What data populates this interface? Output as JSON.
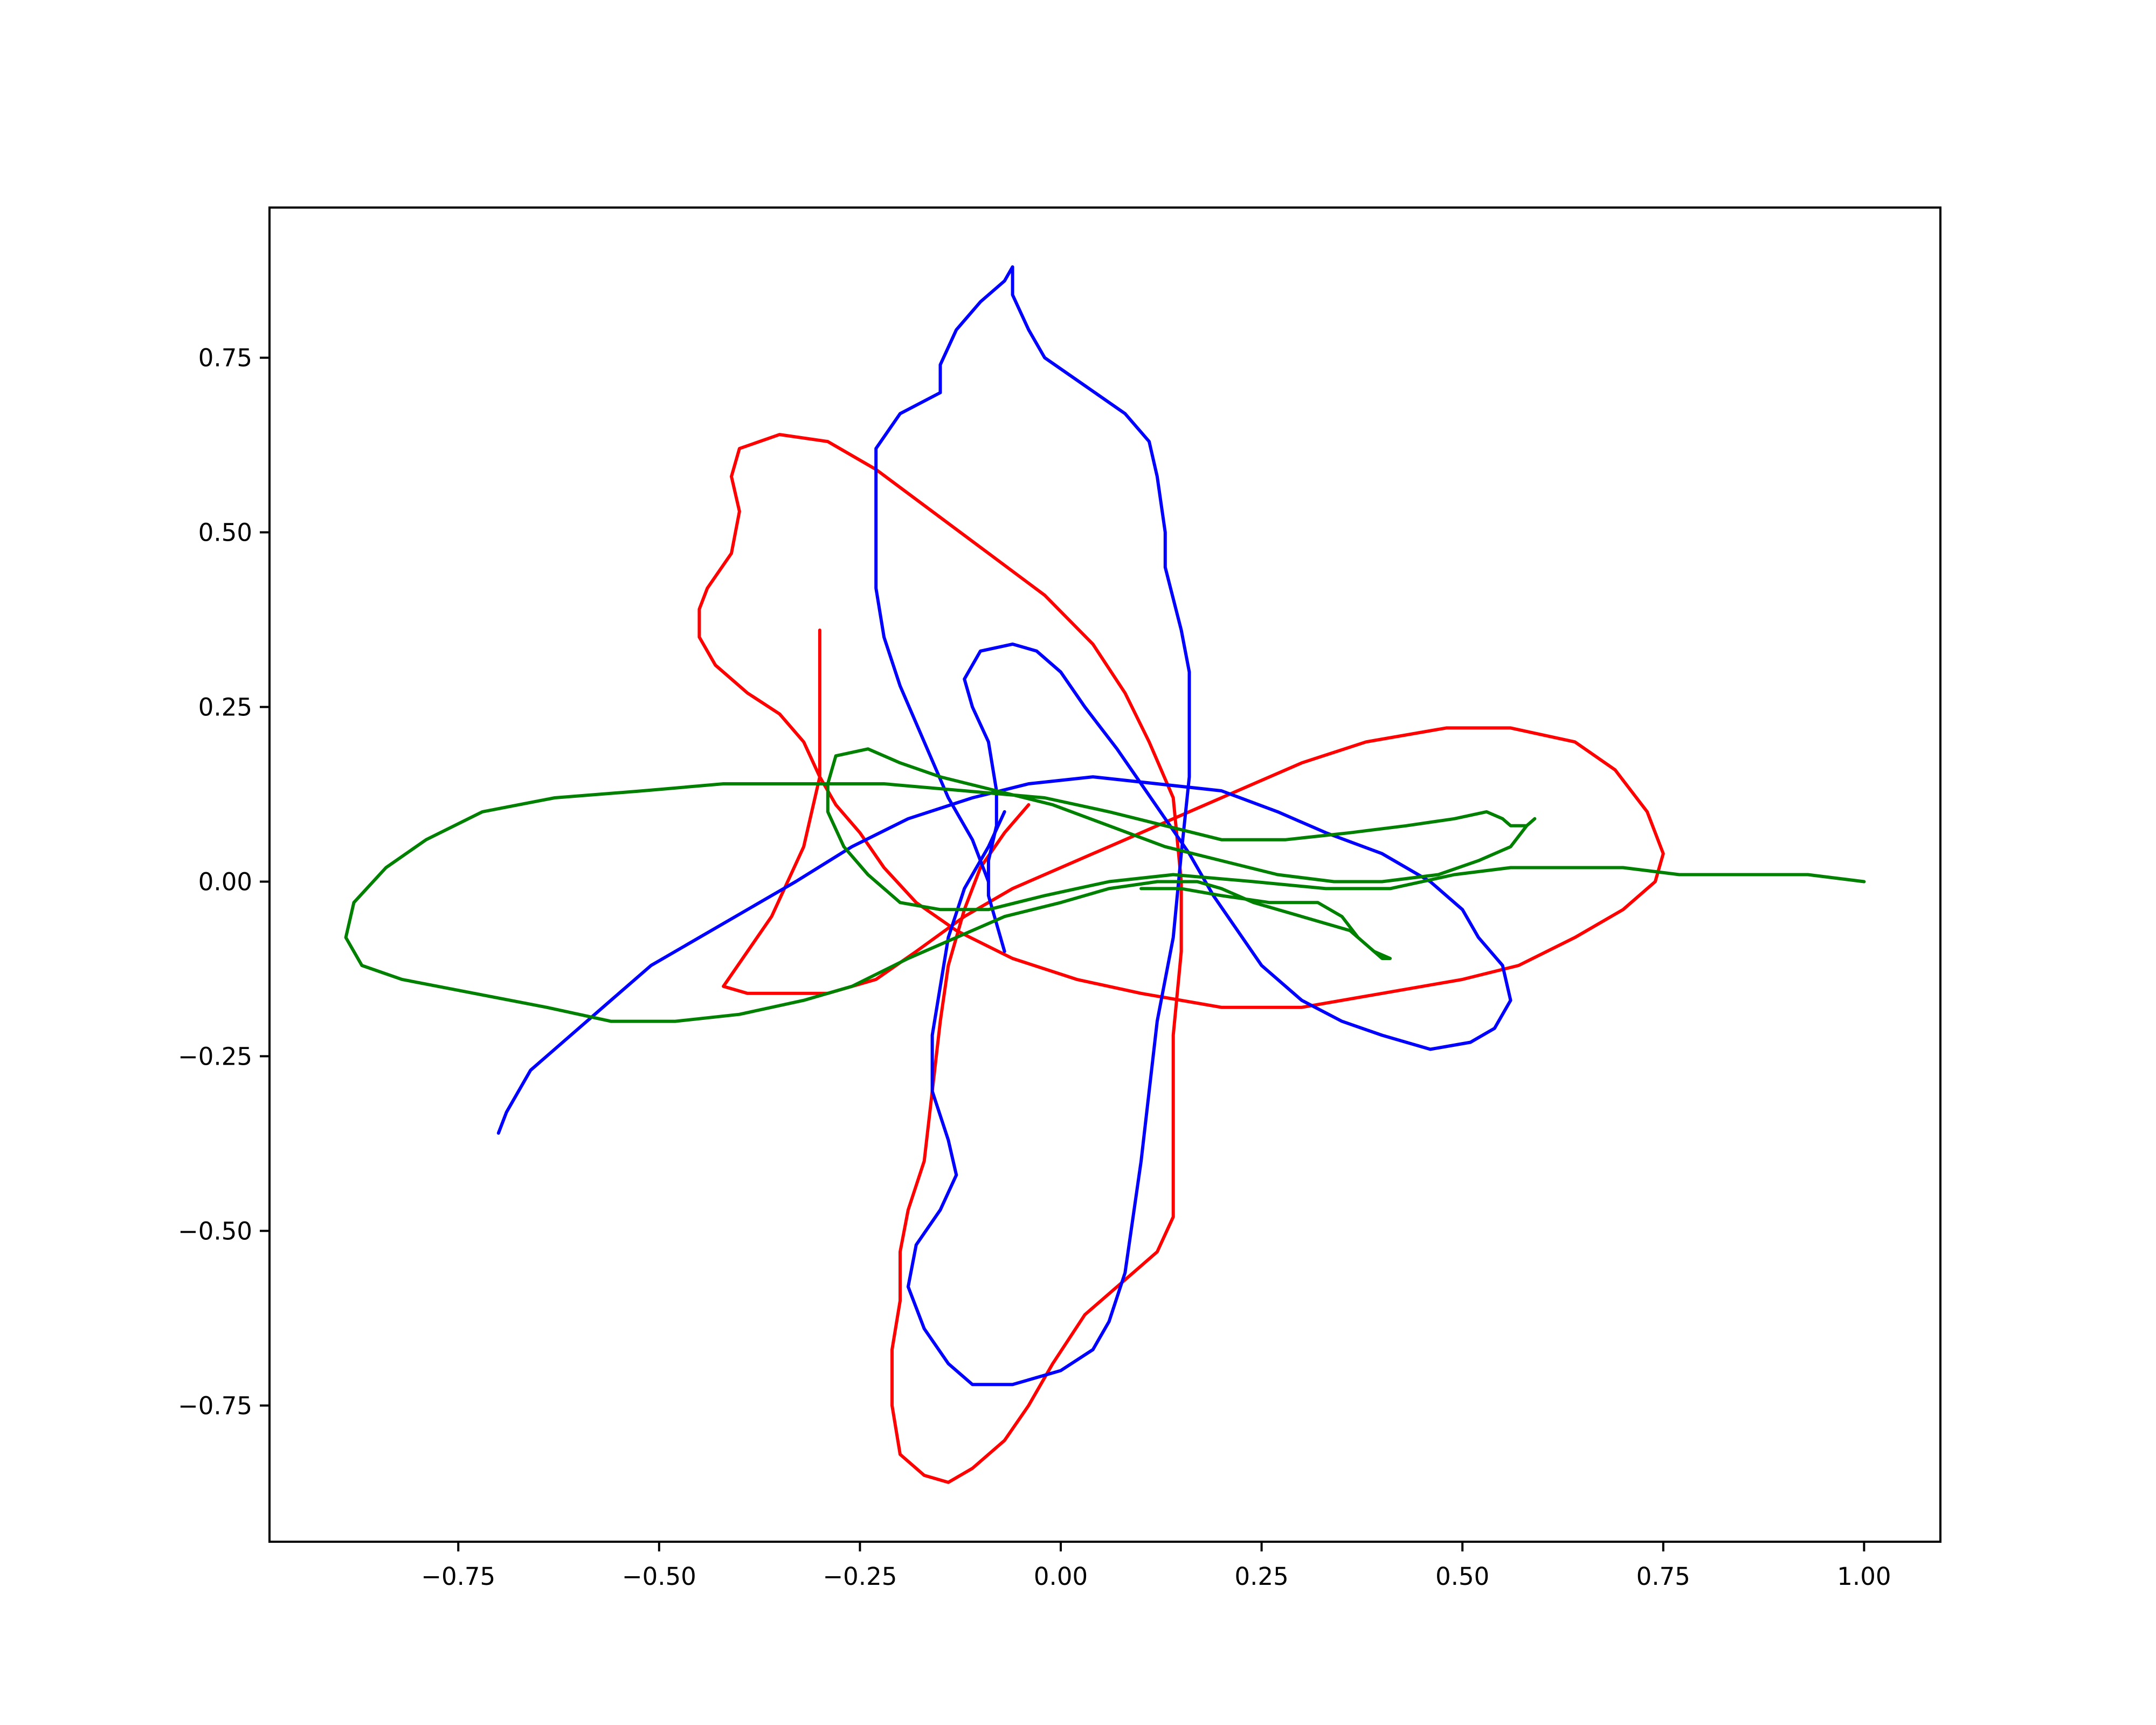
{
  "chart_data": {
    "type": "line",
    "title": "",
    "xlabel": "",
    "ylabel": "",
    "xlim": [
      -0.985,
      1.095
    ],
    "ylim": [
      -0.945,
      0.965
    ],
    "grid": false,
    "legend": "none",
    "x_ticks": [
      "−0.75",
      "−0.50",
      "−0.25",
      "0.00",
      "0.25",
      "0.50",
      "0.75",
      "1.00"
    ],
    "y_ticks": [
      "−0.75",
      "−0.50",
      "−0.25",
      "0.00",
      "0.25",
      "0.50",
      "0.75"
    ],
    "series": [
      {
        "color": "#ff0000",
        "points": [
          [
            -0.04,
            0.11
          ],
          [
            -0.07,
            0.07
          ],
          [
            -0.1,
            0.02
          ],
          [
            -0.12,
            -0.04
          ],
          [
            -0.14,
            -0.12
          ],
          [
            -0.15,
            -0.2
          ],
          [
            -0.16,
            -0.3
          ],
          [
            -0.17,
            -0.4
          ],
          [
            -0.19,
            -0.47
          ],
          [
            -0.2,
            -0.53
          ],
          [
            -0.2,
            -0.6
          ],
          [
            -0.21,
            -0.67
          ],
          [
            -0.21,
            -0.75
          ],
          [
            -0.2,
            -0.82
          ],
          [
            -0.17,
            -0.85
          ],
          [
            -0.14,
            -0.86
          ],
          [
            -0.11,
            -0.84
          ],
          [
            -0.07,
            -0.8
          ],
          [
            -0.04,
            -0.75
          ],
          [
            -0.01,
            -0.69
          ],
          [
            0.03,
            -0.62
          ],
          [
            0.08,
            -0.57
          ],
          [
            0.12,
            -0.53
          ],
          [
            0.14,
            -0.48
          ],
          [
            0.14,
            -0.42
          ],
          [
            0.14,
            -0.32
          ],
          [
            0.14,
            -0.22
          ],
          [
            0.15,
            -0.1
          ],
          [
            0.15,
            0.0
          ],
          [
            0.14,
            0.12
          ],
          [
            0.11,
            0.2
          ],
          [
            0.08,
            0.27
          ],
          [
            0.04,
            0.34
          ],
          [
            -0.02,
            0.41
          ],
          [
            -0.09,
            0.47
          ],
          [
            -0.16,
            0.53
          ],
          [
            -0.23,
            0.59
          ],
          [
            -0.29,
            0.63
          ],
          [
            -0.35,
            0.64
          ],
          [
            -0.4,
            0.62
          ],
          [
            -0.41,
            0.58
          ],
          [
            -0.4,
            0.53
          ],
          [
            -0.41,
            0.47
          ],
          [
            -0.44,
            0.42
          ],
          [
            -0.45,
            0.39
          ],
          [
            -0.45,
            0.35
          ],
          [
            -0.43,
            0.31
          ],
          [
            -0.39,
            0.27
          ],
          [
            -0.35,
            0.24
          ],
          [
            -0.32,
            0.2
          ],
          [
            -0.3,
            0.15
          ],
          [
            -0.28,
            0.11
          ],
          [
            -0.25,
            0.07
          ],
          [
            -0.22,
            0.02
          ],
          [
            -0.18,
            -0.03
          ],
          [
            -0.13,
            -0.07
          ],
          [
            -0.06,
            -0.11
          ],
          [
            0.02,
            -0.14
          ],
          [
            0.1,
            -0.16
          ],
          [
            0.2,
            -0.18
          ],
          [
            0.3,
            -0.18
          ],
          [
            0.4,
            -0.16
          ],
          [
            0.5,
            -0.14
          ],
          [
            0.57,
            -0.12
          ],
          [
            0.64,
            -0.08
          ],
          [
            0.7,
            -0.04
          ],
          [
            0.74,
            0.0
          ],
          [
            0.75,
            0.04
          ],
          [
            0.73,
            0.1
          ],
          [
            0.69,
            0.16
          ],
          [
            0.64,
            0.2
          ],
          [
            0.56,
            0.22
          ],
          [
            0.48,
            0.22
          ],
          [
            0.38,
            0.2
          ],
          [
            0.3,
            0.17
          ],
          [
            0.22,
            0.13
          ],
          [
            0.16,
            0.1
          ],
          [
            0.08,
            0.06
          ],
          [
            0.0,
            0.02
          ],
          [
            -0.06,
            -0.01
          ],
          [
            -0.12,
            -0.05
          ],
          [
            -0.18,
            -0.1
          ],
          [
            -0.23,
            -0.14
          ],
          [
            -0.29,
            -0.16
          ],
          [
            -0.35,
            -0.16
          ],
          [
            -0.39,
            -0.16
          ],
          [
            -0.42,
            -0.15
          ],
          [
            -0.39,
            -0.1
          ],
          [
            -0.36,
            -0.05
          ],
          [
            -0.34,
            0.0
          ],
          [
            -0.32,
            0.05
          ],
          [
            -0.31,
            0.1
          ],
          [
            -0.3,
            0.15
          ],
          [
            -0.3,
            0.22
          ],
          [
            -0.3,
            0.29
          ],
          [
            -0.3,
            0.36
          ]
        ]
      },
      {
        "color": "#0000ff",
        "points": [
          [
            -0.07,
            -0.1
          ],
          [
            -0.08,
            -0.06
          ],
          [
            -0.09,
            -0.02
          ],
          [
            -0.09,
            0.03
          ],
          [
            -0.08,
            0.08
          ],
          [
            -0.08,
            0.13
          ],
          [
            -0.09,
            0.2
          ],
          [
            -0.11,
            0.25
          ],
          [
            -0.12,
            0.29
          ],
          [
            -0.1,
            0.33
          ],
          [
            -0.06,
            0.34
          ],
          [
            -0.03,
            0.33
          ],
          [
            0.0,
            0.3
          ],
          [
            0.03,
            0.25
          ],
          [
            0.07,
            0.19
          ],
          [
            0.1,
            0.14
          ],
          [
            0.13,
            0.09
          ],
          [
            0.16,
            0.04
          ],
          [
            0.19,
            -0.02
          ],
          [
            0.22,
            -0.07
          ],
          [
            0.25,
            -0.12
          ],
          [
            0.3,
            -0.17
          ],
          [
            0.35,
            -0.2
          ],
          [
            0.4,
            -0.22
          ],
          [
            0.46,
            -0.24
          ],
          [
            0.51,
            -0.23
          ],
          [
            0.54,
            -0.21
          ],
          [
            0.56,
            -0.17
          ],
          [
            0.55,
            -0.12
          ],
          [
            0.52,
            -0.08
          ],
          [
            0.5,
            -0.04
          ],
          [
            0.46,
            0.0
          ],
          [
            0.4,
            0.04
          ],
          [
            0.33,
            0.07
          ],
          [
            0.27,
            0.1
          ],
          [
            0.2,
            0.13
          ],
          [
            0.12,
            0.14
          ],
          [
            0.04,
            0.15
          ],
          [
            -0.04,
            0.14
          ],
          [
            -0.11,
            0.12
          ],
          [
            -0.19,
            0.09
          ],
          [
            -0.26,
            0.05
          ],
          [
            -0.33,
            0.0
          ],
          [
            -0.39,
            -0.04
          ],
          [
            -0.45,
            -0.08
          ],
          [
            -0.51,
            -0.12
          ],
          [
            -0.56,
            -0.17
          ],
          [
            -0.61,
            -0.22
          ],
          [
            -0.66,
            -0.27
          ],
          [
            -0.69,
            -0.33
          ],
          [
            -0.7,
            -0.36
          ]
        ]
      },
      {
        "color": "#0000ff",
        "points": [
          [
            -0.07,
            0.1
          ],
          [
            -0.09,
            0.05
          ],
          [
            -0.12,
            -0.01
          ],
          [
            -0.14,
            -0.08
          ],
          [
            -0.15,
            -0.15
          ],
          [
            -0.16,
            -0.22
          ],
          [
            -0.16,
            -0.3
          ],
          [
            -0.14,
            -0.37
          ],
          [
            -0.13,
            -0.42
          ],
          [
            -0.15,
            -0.47
          ],
          [
            -0.18,
            -0.52
          ],
          [
            -0.19,
            -0.58
          ],
          [
            -0.17,
            -0.64
          ],
          [
            -0.14,
            -0.69
          ],
          [
            -0.11,
            -0.72
          ],
          [
            -0.06,
            -0.72
          ],
          [
            0.0,
            -0.7
          ],
          [
            0.04,
            -0.67
          ],
          [
            0.06,
            -0.63
          ],
          [
            0.08,
            -0.56
          ],
          [
            0.09,
            -0.48
          ],
          [
            0.1,
            -0.4
          ],
          [
            0.11,
            -0.3
          ],
          [
            0.12,
            -0.2
          ],
          [
            0.14,
            -0.08
          ],
          [
            0.15,
            0.04
          ],
          [
            0.16,
            0.15
          ],
          [
            0.16,
            0.3
          ],
          [
            0.15,
            0.36
          ],
          [
            0.13,
            0.45
          ],
          [
            0.13,
            0.5
          ],
          [
            0.12,
            0.58
          ],
          [
            0.11,
            0.63
          ],
          [
            0.08,
            0.67
          ],
          [
            0.03,
            0.71
          ],
          [
            -0.02,
            0.75
          ],
          [
            -0.04,
            0.79
          ],
          [
            -0.06,
            0.84
          ],
          [
            -0.06,
            0.88
          ],
          [
            -0.07,
            0.86
          ],
          [
            -0.1,
            0.83
          ],
          [
            -0.13,
            0.79
          ],
          [
            -0.15,
            0.74
          ],
          [
            -0.15,
            0.7
          ],
          [
            -0.2,
            0.67
          ],
          [
            -0.23,
            0.62
          ],
          [
            -0.23,
            0.55
          ],
          [
            -0.23,
            0.5
          ],
          [
            -0.23,
            0.42
          ],
          [
            -0.22,
            0.35
          ],
          [
            -0.2,
            0.28
          ],
          [
            -0.17,
            0.2
          ],
          [
            -0.14,
            0.12
          ],
          [
            -0.11,
            0.06
          ],
          [
            -0.09,
            0.0
          ]
        ]
      },
      {
        "color": "#008000",
        "points": [
          [
            0.1,
            -0.01
          ],
          [
            0.15,
            -0.01
          ],
          [
            0.2,
            -0.02
          ],
          [
            0.26,
            -0.03
          ],
          [
            0.32,
            -0.03
          ],
          [
            0.35,
            -0.05
          ],
          [
            0.37,
            -0.08
          ],
          [
            0.4,
            -0.11
          ],
          [
            0.41,
            -0.11
          ],
          [
            0.39,
            -0.1
          ],
          [
            0.36,
            -0.07
          ],
          [
            0.3,
            -0.05
          ],
          [
            0.24,
            -0.03
          ],
          [
            0.2,
            -0.01
          ],
          [
            0.17,
            0.0
          ],
          [
            0.12,
            0.0
          ],
          [
            0.06,
            -0.01
          ],
          [
            0.0,
            -0.03
          ],
          [
            -0.07,
            -0.05
          ],
          [
            -0.13,
            -0.08
          ],
          [
            -0.19,
            -0.11
          ],
          [
            -0.26,
            -0.15
          ],
          [
            -0.32,
            -0.17
          ],
          [
            -0.4,
            -0.19
          ],
          [
            -0.48,
            -0.2
          ],
          [
            -0.56,
            -0.2
          ],
          [
            -0.64,
            -0.18
          ],
          [
            -0.73,
            -0.16
          ],
          [
            -0.82,
            -0.14
          ],
          [
            -0.87,
            -0.12
          ],
          [
            -0.89,
            -0.08
          ],
          [
            -0.88,
            -0.03
          ],
          [
            -0.84,
            0.02
          ],
          [
            -0.79,
            0.06
          ],
          [
            -0.72,
            0.1
          ],
          [
            -0.63,
            0.12
          ],
          [
            -0.52,
            0.13
          ],
          [
            -0.42,
            0.14
          ],
          [
            -0.32,
            0.14
          ],
          [
            -0.22,
            0.14
          ],
          [
            -0.12,
            0.13
          ],
          [
            -0.02,
            0.12
          ],
          [
            0.06,
            0.1
          ],
          [
            0.13,
            0.08
          ],
          [
            0.2,
            0.06
          ],
          [
            0.28,
            0.06
          ],
          [
            0.36,
            0.07
          ],
          [
            0.43,
            0.08
          ],
          [
            0.49,
            0.09
          ],
          [
            0.53,
            0.1
          ],
          [
            0.55,
            0.09
          ],
          [
            0.56,
            0.08
          ],
          [
            0.58,
            0.08
          ],
          [
            0.59,
            0.09
          ],
          [
            0.58,
            0.08
          ],
          [
            0.56,
            0.05
          ],
          [
            0.52,
            0.03
          ],
          [
            0.47,
            0.01
          ],
          [
            0.4,
            0.0
          ],
          [
            0.34,
            0.0
          ],
          [
            0.27,
            0.01
          ],
          [
            0.2,
            0.03
          ],
          [
            0.13,
            0.05
          ],
          [
            0.06,
            0.08
          ],
          [
            -0.01,
            0.11
          ],
          [
            -0.08,
            0.13
          ],
          [
            -0.15,
            0.15
          ],
          [
            -0.2,
            0.17
          ],
          [
            -0.24,
            0.19
          ],
          [
            -0.28,
            0.18
          ],
          [
            -0.29,
            0.14
          ],
          [
            -0.29,
            0.1
          ],
          [
            -0.27,
            0.05
          ],
          [
            -0.24,
            0.01
          ],
          [
            -0.2,
            -0.03
          ],
          [
            -0.15,
            -0.04
          ],
          [
            -0.09,
            -0.04
          ],
          [
            -0.02,
            -0.02
          ],
          [
            0.06,
            0.0
          ],
          [
            0.14,
            0.01
          ],
          [
            0.24,
            0.0
          ],
          [
            0.33,
            -0.01
          ],
          [
            0.41,
            -0.01
          ],
          [
            0.49,
            0.01
          ],
          [
            0.56,
            0.02
          ],
          [
            0.63,
            0.02
          ],
          [
            0.7,
            0.02
          ],
          [
            0.77,
            0.01
          ],
          [
            0.85,
            0.01
          ],
          [
            0.93,
            0.01
          ],
          [
            1.0,
            0.0
          ]
        ]
      }
    ]
  }
}
